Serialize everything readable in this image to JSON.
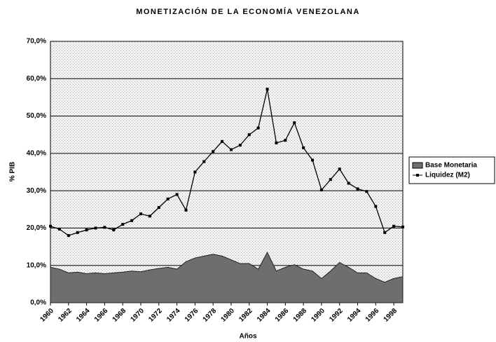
{
  "chart_data": {
    "type": "area-line",
    "title": "MONETIZACIÓN DE LA ECONOMÍA VENEZOLANA",
    "x_label": "Años",
    "y_label": "% PIB",
    "categories": [
      "1960",
      null,
      "1962",
      null,
      "1964",
      null,
      "1966",
      null,
      "1968",
      null,
      "1970",
      null,
      "1972",
      null,
      "1974",
      null,
      "1976",
      null,
      "1978",
      null,
      "1980",
      null,
      "1982",
      null,
      "1984",
      null,
      "1986",
      null,
      "1988",
      null,
      "1990",
      null,
      "1992",
      null,
      "1994",
      null,
      "1996",
      null,
      "1998",
      null
    ],
    "series": [
      {
        "name": "Base Monetaria",
        "color": "#6e6e6e",
        "kind": "area",
        "values": [
          9.5,
          9.0,
          8.0,
          8.2,
          7.8,
          8.0,
          7.8,
          8.0,
          8.2,
          8.5,
          8.3,
          8.8,
          9.2,
          9.5,
          9.0,
          11.0,
          12.0,
          12.5,
          13.0,
          12.5,
          11.5,
          10.5,
          10.5,
          9.0,
          13.5,
          8.5,
          9.5,
          10.2,
          9.0,
          8.5,
          6.5,
          8.5,
          10.8,
          9.5,
          8.0,
          8.0,
          6.5,
          5.5,
          6.5,
          7.0
        ]
      },
      {
        "name": "Liquidez (M2)",
        "color": "#000000",
        "kind": "line",
        "values": [
          20.5,
          19.7,
          18.0,
          18.8,
          19.5,
          20.0,
          20.2,
          19.5,
          21.0,
          22.0,
          23.8,
          23.2,
          25.5,
          27.8,
          29.0,
          24.8,
          35.0,
          37.8,
          40.5,
          43.2,
          41.0,
          42.2,
          45.0,
          46.8,
          57.2,
          42.8,
          43.5,
          48.2,
          41.5,
          38.2,
          30.2,
          33.0,
          35.8,
          32.0,
          30.5,
          29.8,
          25.8,
          18.8,
          20.5,
          20.3
        ]
      }
    ],
    "ylim": [
      0,
      70
    ],
    "yticks": [
      {
        "value": 0,
        "label": "0,0%"
      },
      {
        "value": 10,
        "label": "10,0%"
      },
      {
        "value": 20,
        "label": "20,0%"
      },
      {
        "value": 30,
        "label": "30,0%"
      },
      {
        "value": 40,
        "label": "40,0%"
      },
      {
        "value": 50,
        "label": "50,0%"
      },
      {
        "value": 60,
        "label": "60,0%"
      },
      {
        "value": 70,
        "label": "70,0%"
      }
    ],
    "grid": true
  }
}
